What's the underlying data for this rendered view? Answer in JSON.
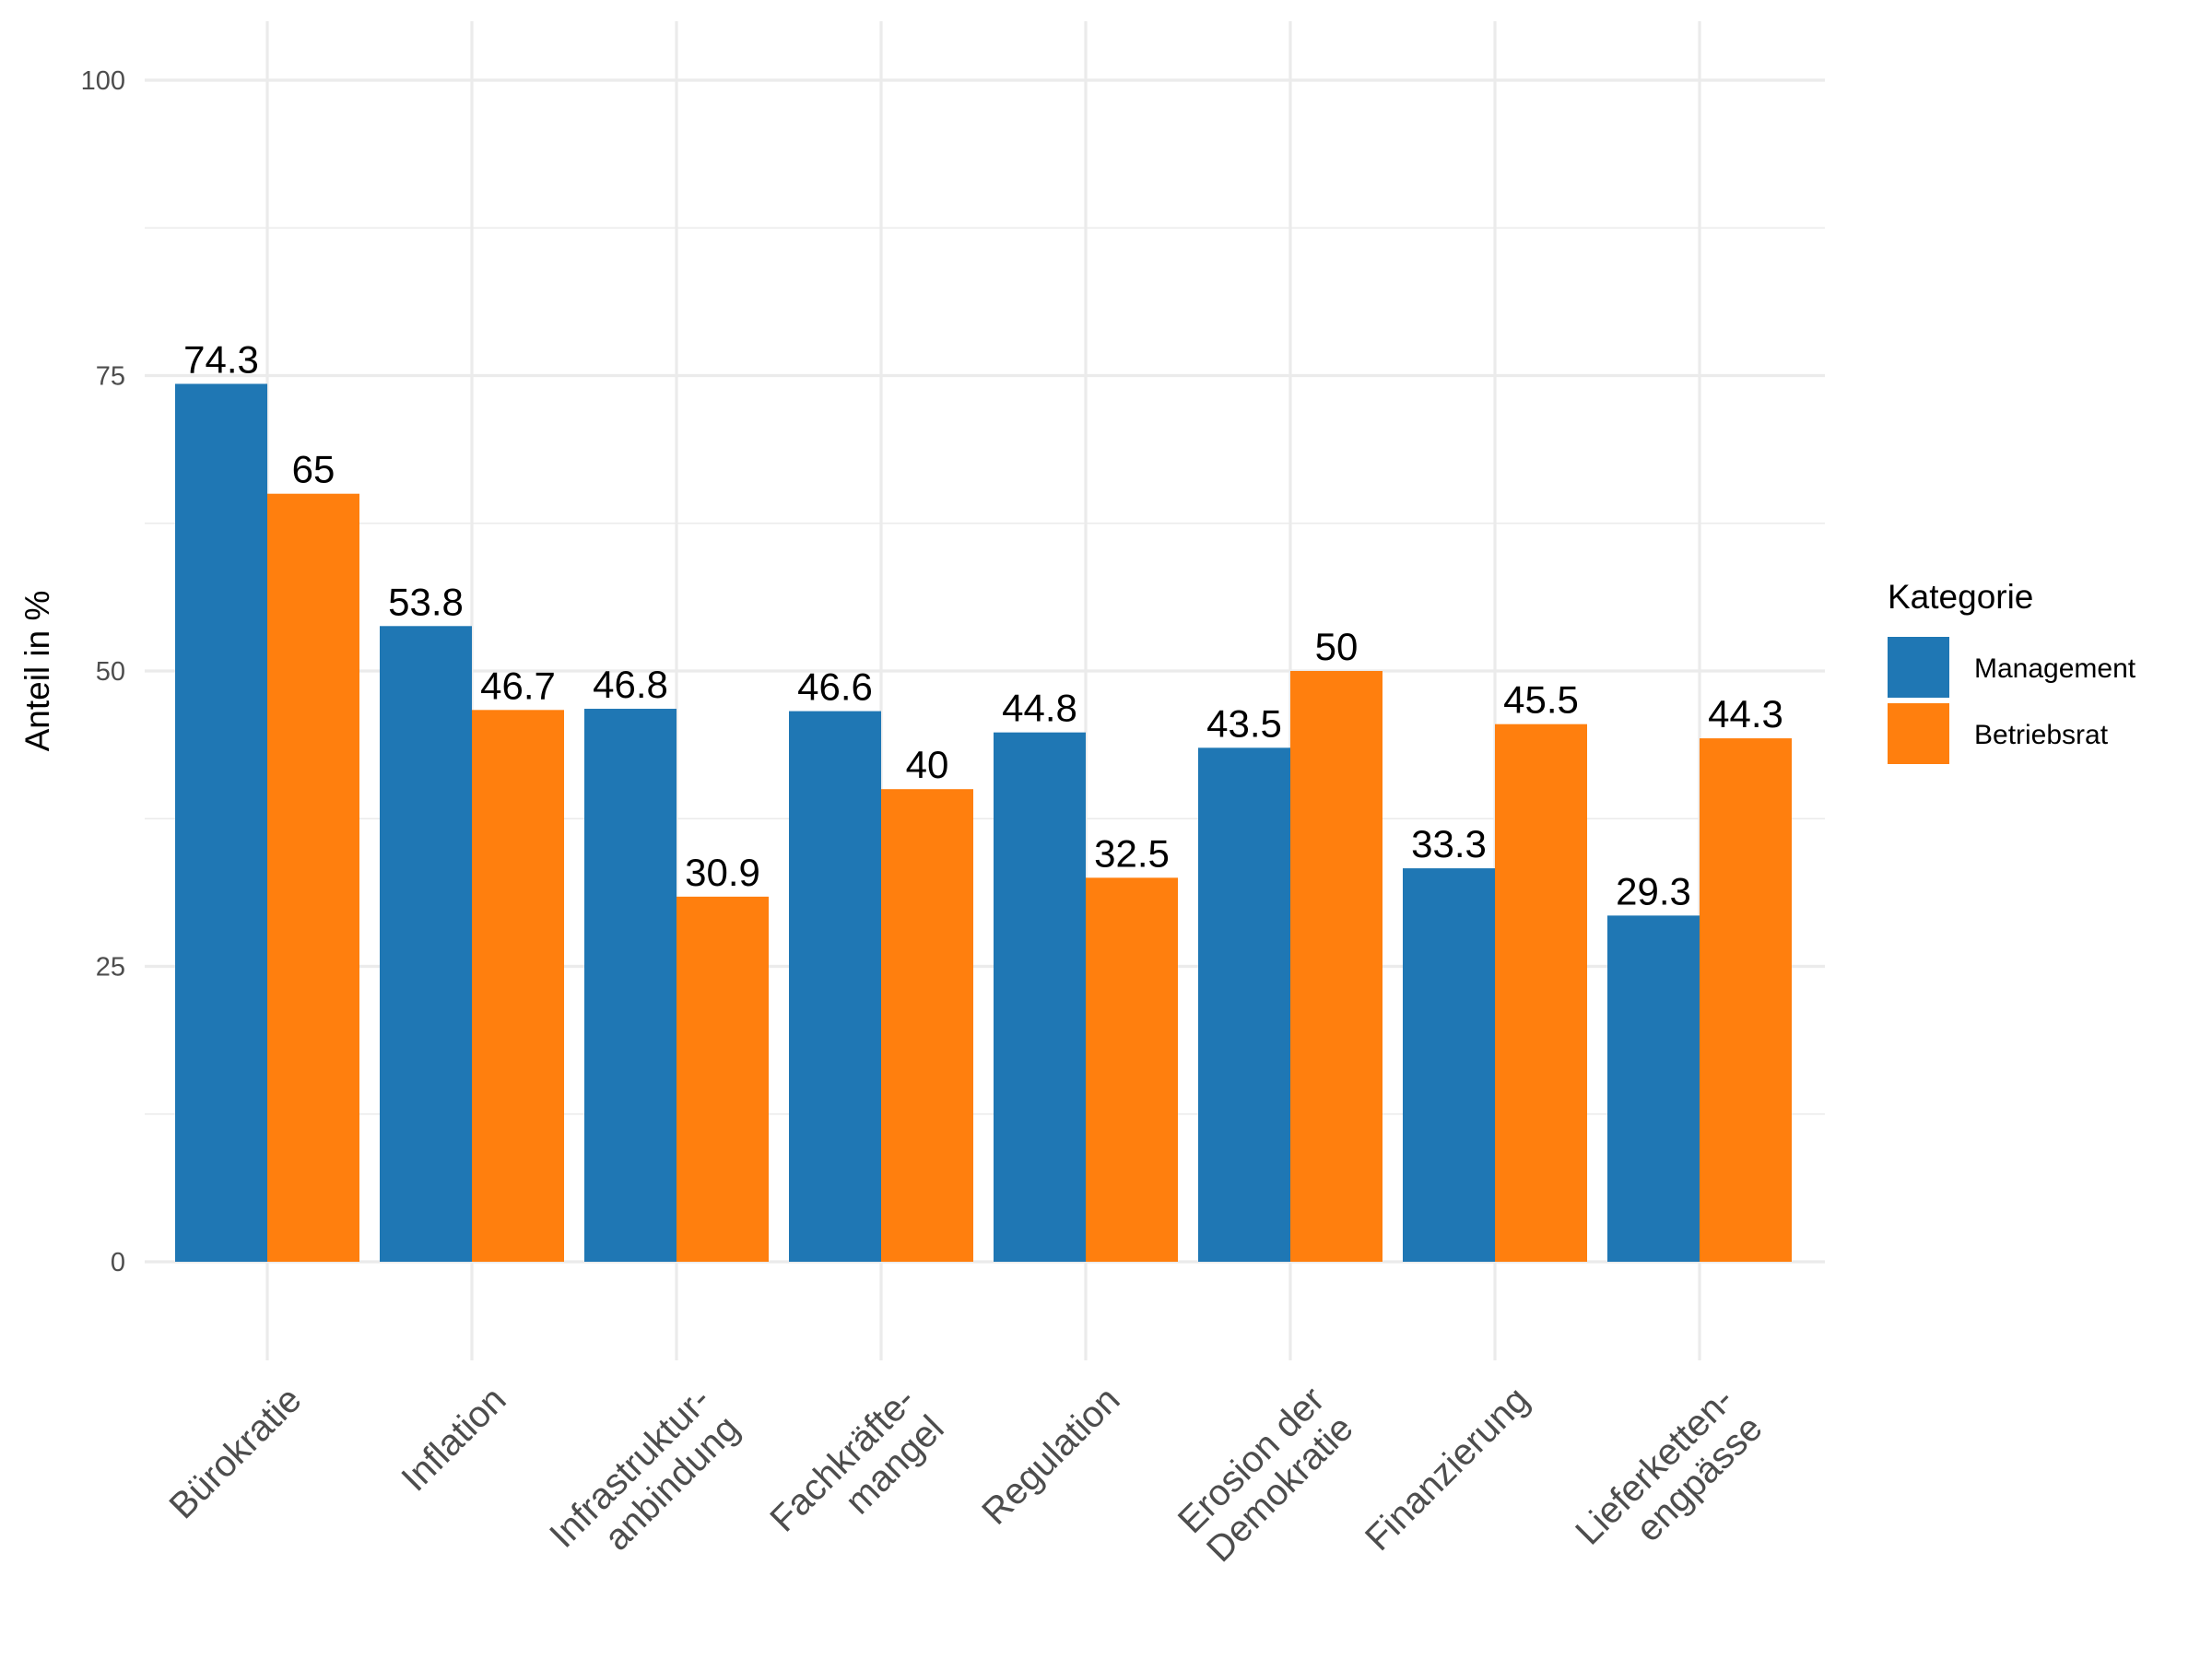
{
  "chart_data": {
    "type": "bar",
    "title": "",
    "xlabel": "",
    "ylabel": "Anteil in %",
    "ylim": [
      0,
      100
    ],
    "yticks": [
      0,
      25,
      50,
      75,
      100
    ],
    "grid": true,
    "categories": [
      [
        "Bürokratie"
      ],
      [
        "Inflation"
      ],
      [
        "Infrastruktur-",
        "anbindung"
      ],
      [
        "Fachkräfte-",
        "mangel"
      ],
      [
        "Regulation"
      ],
      [
        "Erosion der",
        "Demokratie"
      ],
      [
        "Finanzierung"
      ],
      [
        "Lieferketten-",
        "engpässe"
      ]
    ],
    "series": [
      {
        "name": "Management",
        "color": "#1f77b4",
        "values": [
          74.3,
          53.8,
          46.8,
          46.6,
          44.8,
          43.5,
          33.3,
          29.3
        ]
      },
      {
        "name": "Betriebsrat",
        "color": "#ff7f0e",
        "values": [
          65,
          46.7,
          30.9,
          40,
          32.5,
          50,
          45.5,
          44.3
        ]
      }
    ],
    "data_labels": [
      [
        "74.3",
        "53.8",
        "46.8",
        "46.6",
        "44.8",
        "43.5",
        "33.3",
        "29.3"
      ],
      [
        "65",
        "46.7",
        "30.9",
        "40",
        "32.5",
        "50",
        "45.5",
        "44.3"
      ]
    ],
    "legend": {
      "title": "Kategorie",
      "position": "right",
      "entries": [
        "Management",
        "Betriebsrat"
      ]
    }
  }
}
